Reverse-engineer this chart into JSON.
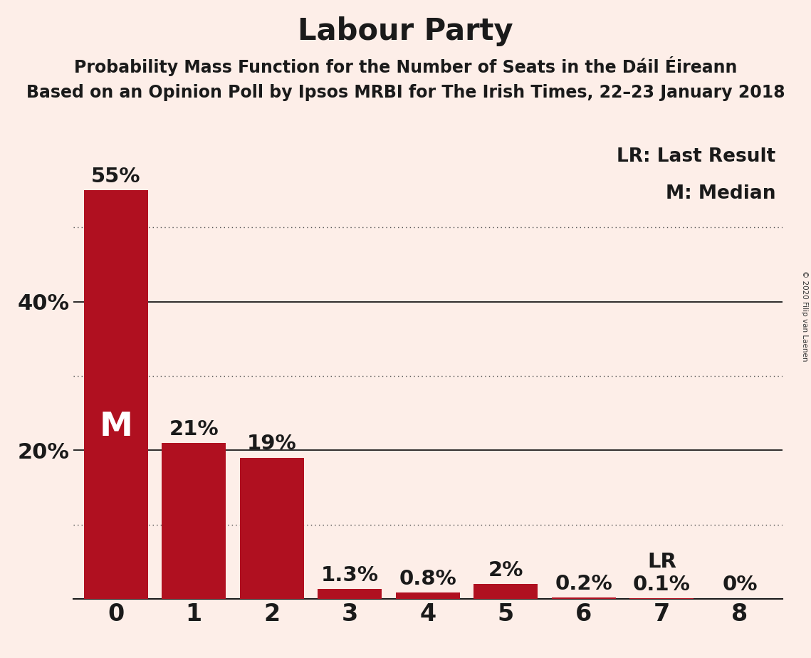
{
  "title": "Labour Party",
  "subtitle1": "Probability Mass Function for the Number of Seats in the Dáil Éireann",
  "subtitle2": "Based on an Opinion Poll by Ipsos MRBI for The Irish Times, 22–23 January 2018",
  "copyright": "© 2020 Filip van Laenen",
  "categories": [
    0,
    1,
    2,
    3,
    4,
    5,
    6,
    7,
    8
  ],
  "values": [
    55.0,
    21.0,
    19.0,
    1.3,
    0.8,
    2.0,
    0.2,
    0.1,
    0.0
  ],
  "bar_color": "#b01020",
  "background_color": "#fdeee8",
  "text_color": "#1a1a1a",
  "white": "#ffffff",
  "yticks": [
    20,
    40
  ],
  "ytick_labels": [
    "20%",
    "40%"
  ],
  "ylim": [
    0,
    62
  ],
  "grid_lines_solid": [
    20,
    40
  ],
  "grid_lines_dotted": [
    10,
    30,
    50
  ],
  "median_bar": 0,
  "median_label": "M",
  "lr_bar": 7,
  "lr_label": "LR",
  "lr_legend": "LR: Last Result",
  "m_legend": "M: Median",
  "value_labels": [
    "55%",
    "21%",
    "19%",
    "1.3%",
    "0.8%",
    "2%",
    "0.2%",
    "0.1%",
    "0%"
  ],
  "title_fontsize": 30,
  "subtitle_fontsize": 17,
  "bar_label_fontsize": 21,
  "legend_fontsize": 19,
  "ytick_fontsize": 22,
  "xtick_fontsize": 24,
  "median_fontsize": 34
}
